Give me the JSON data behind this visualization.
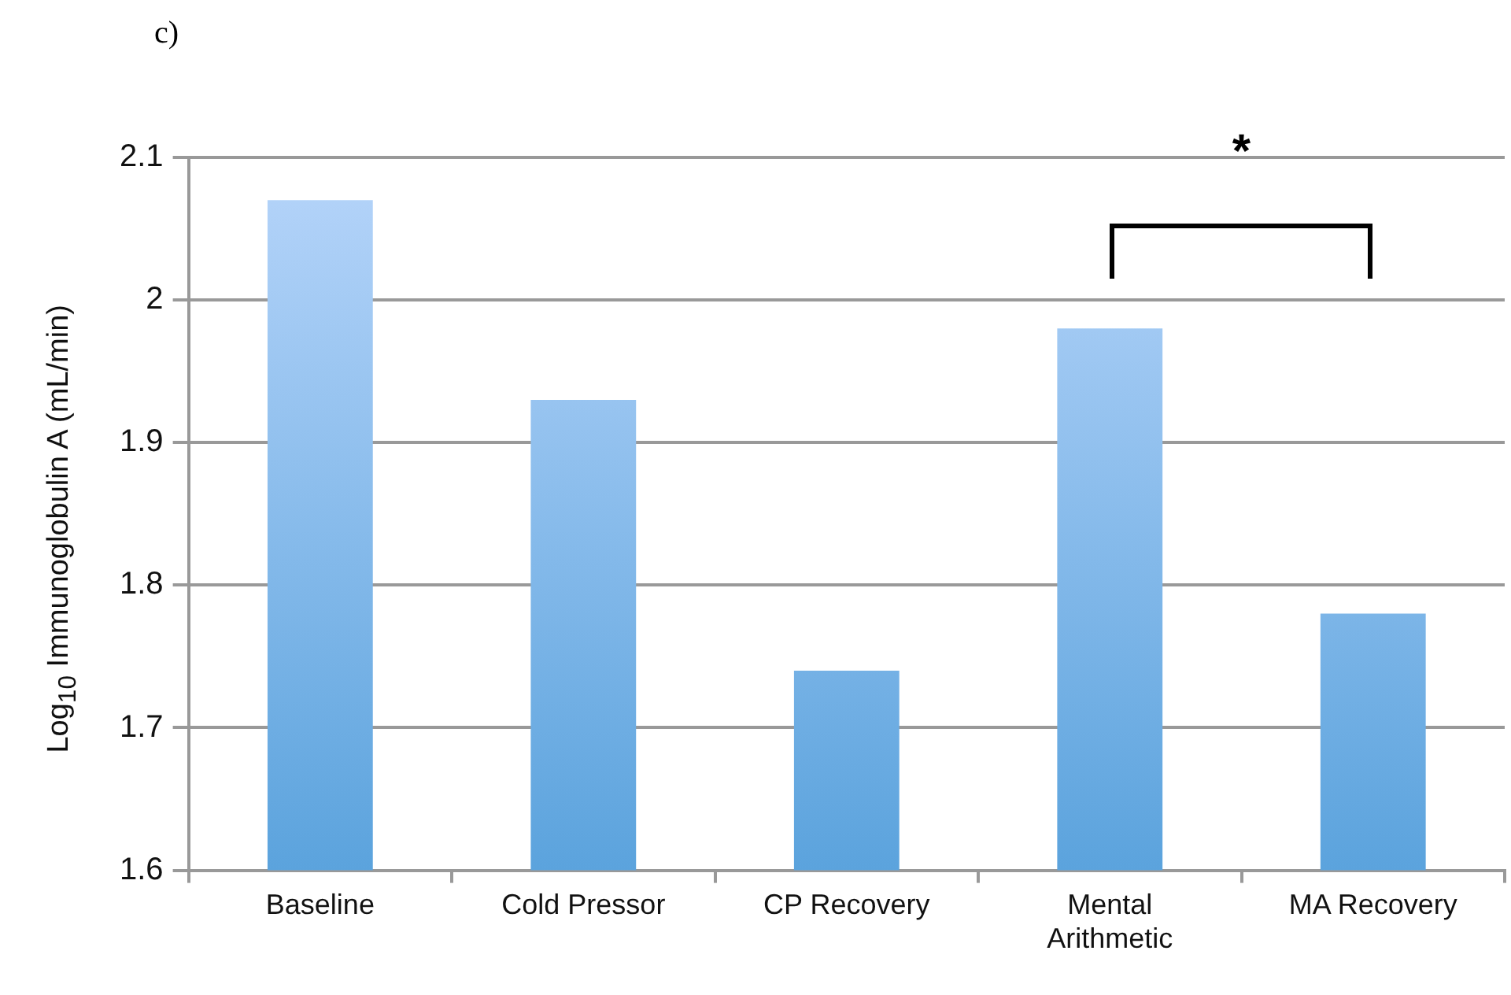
{
  "chart_data": {
    "type": "bar",
    "ylabel": "Log$_{10}$ Immunoglobulin A (mL/min)",
    "categories": [
      "Baseline",
      "Cold Pressor",
      "CP Recovery",
      "Mental Arithmetic",
      "MA Recovery"
    ],
    "values": [
      2.07,
      1.93,
      1.74,
      1.98,
      1.78
    ],
    "color": "#5ba3dd",
    "ylim": [
      1.6,
      2.1
    ],
    "yticks": [
      1.6,
      1.7,
      1.8,
      1.9,
      2,
      2.1
    ],
    "grid": "y",
    "annotations": [
      "c)",
      "*"
    ]
  }
}
